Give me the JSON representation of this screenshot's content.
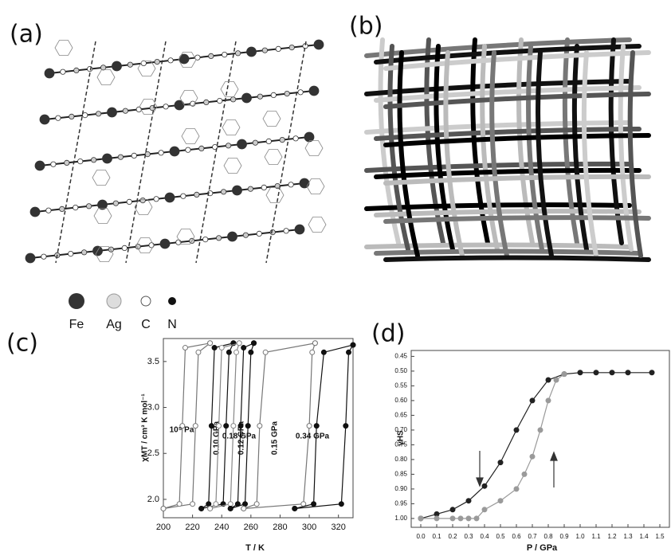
{
  "panels": [
    "(a)",
    "(b)",
    "(c)",
    "(d)"
  ],
  "legend": [
    "Fe",
    "Ag",
    "C",
    "N"
  ],
  "chart_data": [
    {
      "type": "line",
      "x_label": "T / K",
      "y_label": "χMT / cm³ K mol⁻¹",
      "xlim": [
        200,
        330
      ],
      "xticks": [
        200,
        220,
        240,
        260,
        280,
        300,
        320
      ],
      "ylim": [
        1.8,
        3.75
      ],
      "yticks": [
        {
          "value": 2.0,
          "label": "2.0"
        },
        2.5,
        {
          "value": 3.0,
          "label": "3.0"
        },
        3.5
      ],
      "series": [
        {
          "name": "10⁵ Pa",
          "color": "#777777",
          "marker": "open",
          "x": [
            200,
            220,
            222,
            224,
            232,
            232,
            215,
            213,
            211,
            200
          ],
          "values": [
            1.9,
            1.95,
            2.8,
            3.6,
            3.7,
            3.7,
            3.65,
            2.8,
            1.95,
            1.9
          ]
        },
        {
          "name": "0.10 GPa",
          "color": "#111111",
          "marker": "filled",
          "x": [
            226,
            241,
            243,
            245,
            248,
            248,
            235,
            233,
            231,
            226
          ],
          "values": [
            1.9,
            1.95,
            2.8,
            3.6,
            3.7,
            3.7,
            3.65,
            2.8,
            1.95,
            1.9
          ]
        },
        {
          "name": "0.12 GPa",
          "color": "#888888",
          "marker": "open",
          "x": [
            232,
            246,
            248,
            250,
            252,
            252,
            240,
            238,
            236,
            232
          ],
          "values": [
            1.9,
            1.95,
            2.8,
            3.6,
            3.7,
            3.7,
            3.65,
            2.8,
            1.95,
            1.9
          ]
        },
        {
          "name": "0.15 GPa",
          "color": "#111111",
          "marker": "filled",
          "x": [
            246,
            256,
            258,
            260,
            262,
            262,
            255,
            253,
            251,
            246
          ],
          "values": [
            1.9,
            1.95,
            2.8,
            3.6,
            3.7,
            3.7,
            3.65,
            2.8,
            1.95,
            1.9
          ]
        },
        {
          "name": "0.18 GPa",
          "color": "#777777",
          "marker": "open",
          "x": [
            255,
            296,
            300,
            302,
            304,
            304,
            270,
            266,
            264,
            255
          ],
          "values": [
            1.9,
            1.95,
            2.8,
            3.6,
            3.7,
            3.7,
            3.6,
            2.8,
            1.95,
            1.9
          ]
        },
        {
          "name": "0.34 GPa",
          "color": "#111111",
          "marker": "filled",
          "x": [
            290,
            322,
            325,
            327,
            330,
            330,
            310,
            305,
            303,
            290
          ],
          "values": [
            1.9,
            1.95,
            2.8,
            3.6,
            3.68,
            3.68,
            3.6,
            2.8,
            1.95,
            1.9
          ]
        }
      ]
    },
    {
      "type": "line",
      "x_label": "P / GPa",
      "y_label": "γHS",
      "xlim": [
        -0.06,
        1.56
      ],
      "xticks": [
        {
          "value": 0.0,
          "label": "0.0"
        },
        0.1,
        0.2,
        0.3,
        0.4,
        0.5,
        0.6,
        0.7,
        0.8,
        0.9,
        {
          "value": 1.0,
          "label": "1.0"
        },
        1.1,
        1.2,
        1.3,
        1.4,
        1.5
      ],
      "ylim": [
        1.03,
        0.43
      ],
      "yticks": [
        0.45,
        {
          "value": 0.5,
          "label": "0.50"
        },
        0.55,
        {
          "value": 0.6,
          "label": "0.60"
        },
        0.65,
        {
          "value": 0.7,
          "label": "0.70"
        },
        0.75,
        {
          "value": 0.8,
          "label": "0.80"
        },
        0.85,
        {
          "value": 0.9,
          "label": "0.90"
        },
        0.95,
        {
          "value": 1.0,
          "label": "1.00"
        }
      ],
      "series": [
        {
          "color": "#222222",
          "marker": "filled",
          "x": [
            0,
            0.1,
            0.2,
            0.3,
            0.4,
            0.5,
            0.6,
            0.7,
            0.8,
            0.9,
            1.0,
            1.1,
            1.2,
            1.3,
            1.45
          ],
          "values": [
            1.0,
            0.985,
            0.97,
            0.94,
            0.89,
            0.81,
            0.7,
            0.6,
            0.53,
            0.51,
            0.505,
            0.505,
            0.505,
            0.505,
            0.505
          ]
        },
        {
          "color": "#9a9a9a",
          "marker": "filled",
          "x": [
            0,
            0.1,
            0.2,
            0.25,
            0.3,
            0.35,
            0.4,
            0.5,
            0.6,
            0.65,
            0.7,
            0.75,
            0.8,
            0.85,
            0.9
          ],
          "values": [
            1.0,
            1.0,
            1.0,
            1.0,
            1.0,
            1.0,
            0.97,
            0.94,
            0.9,
            0.85,
            0.79,
            0.7,
            0.6,
            0.53,
            0.51
          ]
        }
      ]
    }
  ]
}
